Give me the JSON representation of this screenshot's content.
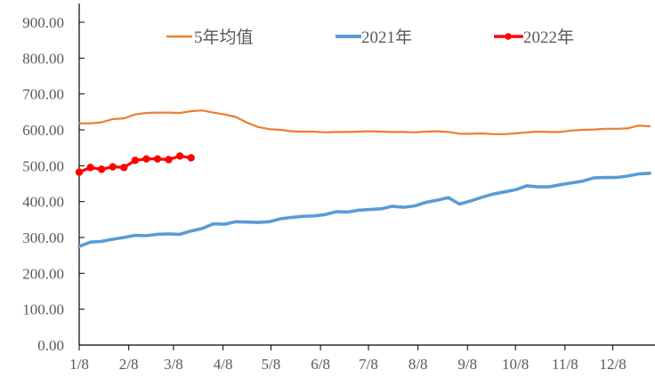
{
  "chart_data": {
    "type": "line",
    "title": "",
    "xlabel": "",
    "ylabel": "",
    "ylim": [
      0,
      900
    ],
    "yticks": [
      "0.00",
      "100.00",
      "200.00",
      "300.00",
      "400.00",
      "500.00",
      "600.00",
      "700.00",
      "800.00",
      "900.00"
    ],
    "ytick_values": [
      0,
      100,
      200,
      300,
      400,
      500,
      600,
      700,
      800,
      900
    ],
    "xticks": [
      "1/8",
      "2/8",
      "3/8",
      "4/8",
      "5/8",
      "6/8",
      "7/8",
      "8/8",
      "9/8",
      "10/8",
      "11/8",
      "12/8"
    ],
    "xlim_weeks": [
      0,
      51
    ],
    "xtick_weeks": [
      0,
      4.43,
      8.43,
      12.86,
      17.14,
      21.57,
      25.86,
      30.29,
      34.71,
      39,
      43.43,
      47.71
    ],
    "grid": false,
    "legend_position": "top",
    "series": [
      {
        "name": "5年均值",
        "color": "#ED7D31",
        "marker": false,
        "x_weeks": [
          0,
          1,
          2,
          3,
          4,
          5,
          6,
          7,
          8,
          9,
          10,
          11,
          12,
          13,
          14,
          15,
          16,
          17,
          18,
          19,
          20,
          21,
          22,
          23,
          24,
          25,
          26,
          27,
          28,
          29,
          30,
          31,
          32,
          33,
          34,
          35,
          36,
          37,
          38,
          39,
          40,
          41,
          42,
          43,
          44,
          45,
          46,
          47,
          48,
          49,
          50,
          51
        ],
        "values": [
          618,
          618,
          621,
          630,
          632,
          643,
          647,
          648,
          648,
          647,
          652,
          654,
          648,
          643,
          636,
          620,
          608,
          602,
          600,
          596,
          595,
          595,
          593,
          594,
          594,
          595,
          596,
          595,
          594,
          594,
          593,
          595,
          596,
          594,
          589,
          589,
          590,
          588,
          588,
          590,
          593,
          595,
          594,
          594,
          598,
          600,
          601,
          603,
          603,
          604,
          612,
          610
        ]
      },
      {
        "name": "2021年",
        "color": "#5B9BD5",
        "marker": false,
        "x_weeks": [
          0,
          1,
          2,
          3,
          4,
          5,
          6,
          7,
          8,
          9,
          10,
          11,
          12,
          13,
          14,
          15,
          16,
          17,
          18,
          19,
          20,
          21,
          22,
          23,
          24,
          25,
          26,
          27,
          28,
          29,
          30,
          31,
          32,
          33,
          34,
          35,
          36,
          37,
          38,
          39,
          40,
          41,
          42,
          43,
          44,
          45,
          46,
          47,
          48,
          49,
          50,
          51
        ],
        "values": [
          275,
          287,
          289,
          295,
          300,
          306,
          305,
          309,
          310,
          309,
          318,
          325,
          338,
          337,
          344,
          343,
          342,
          344,
          352,
          356,
          359,
          360,
          364,
          372,
          371,
          376,
          378,
          380,
          387,
          384,
          388,
          398,
          404,
          411,
          393,
          402,
          412,
          421,
          427,
          433,
          444,
          441,
          441,
          447,
          452,
          457,
          466,
          467,
          467,
          471,
          477,
          479
        ]
      },
      {
        "name": "2022年",
        "color": "#FF0000",
        "marker": true,
        "x_weeks": [
          0,
          1,
          2,
          3,
          4,
          5,
          6,
          7,
          8,
          9,
          10
        ],
        "values": [
          482,
          495,
          490,
          497,
          495,
          515,
          519,
          519,
          517,
          527,
          522
        ]
      }
    ]
  }
}
